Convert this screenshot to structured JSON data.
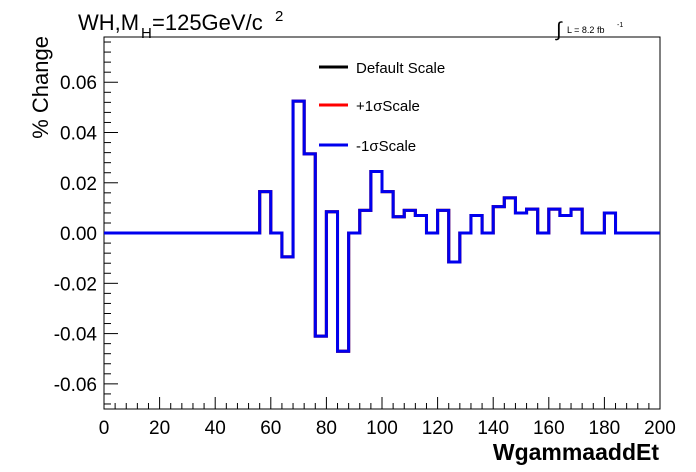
{
  "chart_data": {
    "type": "line",
    "title_main": "WH,M",
    "title_sub": "H",
    "title_rest": "=125GeV/c",
    "title_sup": "2",
    "lumi_label": "L = 8.2 fb",
    "lumi_sup": "-1",
    "xlabel": "WgammaaddEt",
    "ylabel": "% Change",
    "xlim": [
      0,
      200
    ],
    "ylim": [
      -0.07,
      0.078
    ],
    "x_ticks": [
      0,
      20,
      40,
      60,
      80,
      100,
      120,
      140,
      160,
      180,
      200
    ],
    "x_tick_labels": [
      "0",
      "20",
      "40",
      "60",
      "80",
      "100",
      "120",
      "140",
      "160",
      "180",
      "200"
    ],
    "y_ticks": [
      -0.06,
      -0.04,
      -0.02,
      0.0,
      0.02,
      0.04,
      0.06
    ],
    "y_tick_labels": [
      "-0.06",
      "-0.04",
      "-0.02",
      "0.00",
      "0.02",
      "0.04",
      "0.06"
    ],
    "bin_edges": [
      0,
      4,
      8,
      12,
      16,
      20,
      24,
      28,
      32,
      36,
      40,
      44,
      48,
      52,
      56,
      60,
      64,
      68,
      72,
      76,
      80,
      84,
      88,
      92,
      96,
      100,
      104,
      108,
      112,
      116,
      120,
      124,
      128,
      132,
      136,
      140,
      144,
      148,
      152,
      156,
      160,
      164,
      168,
      172,
      176,
      180,
      184,
      188,
      192,
      196,
      200
    ],
    "grid": false,
    "legend_position": "top-center",
    "series": [
      {
        "name": "Default Scale",
        "color": "#000000",
        "values": [
          0,
          0,
          0,
          0,
          0,
          0,
          0,
          0,
          0,
          0,
          0,
          0,
          0,
          0,
          0.0165,
          0,
          -0.0095,
          0.0525,
          0.0315,
          -0.041,
          0.0085,
          -0.047,
          0,
          0.009,
          0.0245,
          0.0165,
          0.0065,
          0.009,
          0.007,
          0,
          0.009,
          -0.0115,
          0,
          0.007,
          0,
          0.0105,
          0.014,
          0.008,
          0.0095,
          0,
          0.0095,
          0.007,
          0.0095,
          0,
          0,
          0.008,
          0,
          0,
          0,
          0
        ]
      },
      {
        "name": "+1σScale",
        "color": "#ff0000",
        "values": [
          0,
          0,
          0,
          0,
          0,
          0,
          0,
          0,
          0,
          0,
          0,
          0,
          0,
          0,
          0.0165,
          0,
          -0.0095,
          0.0525,
          0.0315,
          -0.041,
          0.0085,
          -0.047,
          0,
          0.009,
          0.0245,
          0.0165,
          0.0065,
          0.009,
          0.007,
          0,
          0.009,
          -0.0115,
          0,
          0.007,
          0,
          0.0105,
          0.014,
          0.008,
          0.0095,
          0,
          0.0095,
          0.007,
          0.0095,
          0,
          0,
          0.008,
          0,
          0,
          0,
          0
        ]
      },
      {
        "name": "-1σScale",
        "color": "#0000ee",
        "values": [
          0,
          0,
          0,
          0,
          0,
          0,
          0,
          0,
          0,
          0,
          0,
          0,
          0,
          0,
          0.0165,
          0,
          -0.0095,
          0.0525,
          0.0315,
          -0.041,
          0.0085,
          -0.047,
          0,
          0.009,
          0.0245,
          0.0165,
          0.0065,
          0.009,
          0.007,
          0,
          0.009,
          -0.0115,
          0,
          0.007,
          0,
          0.0105,
          0.014,
          0.008,
          0.0095,
          0,
          0.0095,
          0.007,
          0.0095,
          0,
          0,
          0.008,
          0,
          0,
          0,
          0
        ]
      }
    ]
  }
}
